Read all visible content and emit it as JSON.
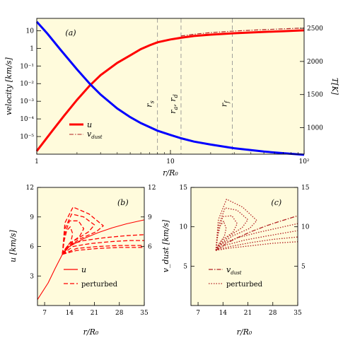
{
  "chart_data": [
    {
      "id": "a",
      "type": "line",
      "panel_label": "(a)",
      "xlabel": "r/R₀",
      "ylabel": "velocity [km/s]",
      "ylabel_right": "T[K]",
      "x_scale": "log",
      "y_scale": "log",
      "xlim": [
        1,
        100
      ],
      "ylim": [
        1e-06,
        50
      ],
      "y2lim": [
        600,
        2650
      ],
      "x_ticks": [
        1,
        10,
        100
      ],
      "x_tick_labels": [
        "1",
        "10",
        "10²"
      ],
      "y_ticks": [
        10,
        1,
        0.1,
        0.01,
        0.001,
        0.0001,
        1e-05
      ],
      "y_tick_labels": [
        "10",
        "1",
        "10⁻¹",
        "10⁻²",
        "10⁻³",
        "10⁻⁴",
        "10⁻⁵"
      ],
      "y2_ticks": [
        1000,
        1500,
        2000,
        2500
      ],
      "y2_tick_labels": [
        "1000",
        "1500",
        "2000",
        "2500"
      ],
      "vlines": [
        {
          "x": 8,
          "label": "r_s"
        },
        {
          "x": 12,
          "label": "r_a, r_d"
        },
        {
          "x": 29,
          "label": "r_f"
        }
      ],
      "vline_labels": [
        "r",
        "s",
        "r",
        "a",
        ", r",
        "d",
        "r",
        "f"
      ],
      "legend": [
        {
          "label": "u",
          "style": "solid",
          "color": "#ff0000"
        },
        {
          "label": "v",
          "sub": "dust",
          "style": "dashdot",
          "color": "#b22222"
        }
      ],
      "series": [
        {
          "name": "u",
          "axis": "left",
          "color": "#ff0000",
          "style": "solid",
          "x": [
            1,
            1.3,
            1.6,
            2,
            2.5,
            3,
            4,
            5,
            6,
            7,
            8,
            10,
            12,
            15,
            20,
            30,
            50,
            70,
            100
          ],
          "y": [
            1.5e-06,
            2e-05,
            0.00015,
            0.0012,
            0.008,
            0.03,
            0.15,
            0.4,
            0.9,
            1.5,
            2.2,
            3.2,
            4.0,
            5.0,
            6.0,
            7.2,
            8.6,
            9.4,
            10.5
          ]
        },
        {
          "name": "v_dust",
          "axis": "left",
          "color": "#b22222",
          "style": "dashdot",
          "x": [
            12,
            15,
            20,
            30,
            50,
            70,
            100
          ],
          "y": [
            5.0,
            6.3,
            7.8,
            9.6,
            11.5,
            12.7,
            14.2
          ]
        },
        {
          "name": "T",
          "axis": "right",
          "color": "#0000ff",
          "style": "solid",
          "x": [
            1,
            1.2,
            1.5,
            2,
            2.5,
            3,
            4,
            5,
            6,
            8,
            10,
            12,
            15,
            20,
            30,
            50,
            70,
            100
          ],
          "y": [
            2600,
            2420,
            2180,
            1880,
            1660,
            1500,
            1290,
            1160,
            1070,
            955,
            890,
            840,
            790,
            745,
            690,
            640,
            615,
            590
          ]
        }
      ]
    },
    {
      "id": "b",
      "type": "line",
      "panel_label": "(b)",
      "xlabel": "r/R₀",
      "ylabel": "u [km/s]",
      "xlim": [
        5,
        35
      ],
      "ylim": [
        0,
        12
      ],
      "x_ticks": [
        7,
        14,
        21,
        28,
        35
      ],
      "y_ticks": [
        3,
        6,
        9,
        12
      ],
      "y2_ticks": [
        6,
        9,
        12
      ],
      "legend": [
        {
          "label": "u",
          "style": "solid"
        },
        {
          "label": "perturbed",
          "style": "dashed"
        }
      ],
      "series": [
        {
          "name": "u",
          "color": "#ff0000",
          "style": "solid",
          "x": [
            5,
            8,
            10,
            12,
            14,
            18,
            22,
            26,
            30,
            35
          ],
          "y": [
            0.6,
            2.3,
            3.8,
            5.2,
            6.0,
            6.8,
            7.4,
            7.9,
            8.3,
            8.7
          ]
        },
        {
          "name": "",
          "color": "#ff0000",
          "style": "dashed",
          "x": [
            12,
            14,
            18,
            24,
            30,
            35
          ],
          "y": [
            5.2,
            6.2,
            6.6,
            6.9,
            7.1,
            7.2
          ]
        },
        {
          "name": "",
          "color": "#ff0000",
          "style": "dashed",
          "x": [
            12,
            15,
            20,
            26,
            31,
            35
          ],
          "y": [
            5.2,
            6.0,
            6.3,
            6.5,
            6.6,
            6.6
          ]
        },
        {
          "name": "",
          "color": "#ff0000",
          "style": "dashed",
          "x": [
            12,
            16,
            22,
            28,
            35
          ],
          "y": [
            5.2,
            5.8,
            6.0,
            6.1,
            6.1
          ]
        },
        {
          "name": "",
          "color": "#ff0000",
          "style": "dashed",
          "x": [
            12,
            16,
            22,
            28,
            35
          ],
          "y": [
            5.2,
            5.6,
            5.8,
            5.9,
            5.9
          ]
        },
        {
          "name": "",
          "color": "#ff0000",
          "style": "dashed",
          "x": [
            12,
            12.5,
            13.2,
            14.2,
            14.9,
            14.4,
            13.1,
            12.3,
            12
          ],
          "y": [
            5.2,
            6.6,
            7.6,
            8.0,
            7.3,
            6.5,
            5.9,
            5.5,
            5.2
          ]
        },
        {
          "name": "",
          "color": "#ff0000",
          "style": "dashed",
          "x": [
            12,
            12.6,
            14,
            16.5,
            18,
            16.8,
            14,
            12.5,
            12
          ],
          "y": [
            5.2,
            7.2,
            8.6,
            8.6,
            7.8,
            7.0,
            6.3,
            5.6,
            5.2
          ]
        },
        {
          "name": "",
          "color": "#ff0000",
          "style": "dashed",
          "x": [
            12,
            12.7,
            14.6,
            18,
            21,
            19.4,
            15.4,
            12.8,
            12
          ],
          "y": [
            5.2,
            7.8,
            9.3,
            9.0,
            8.2,
            7.5,
            6.6,
            5.7,
            5.2
          ]
        },
        {
          "name": "",
          "color": "#ff0000",
          "style": "dashed",
          "x": [
            12,
            12.7,
            15,
            19.5,
            23.5,
            21.5,
            16.5,
            13,
            12
          ],
          "y": [
            5.2,
            8.4,
            10.0,
            9.3,
            8.1,
            7.5,
            6.7,
            5.7,
            5.2
          ]
        }
      ]
    },
    {
      "id": "c",
      "type": "line",
      "panel_label": "(c)",
      "xlabel": "r/R₀",
      "ylabel": "v_dust [km/s]",
      "xlim": [
        5,
        35
      ],
      "ylim": [
        0,
        15
      ],
      "x_ticks": [
        7,
        14,
        21,
        28,
        35
      ],
      "y_ticks": [
        5,
        10,
        15
      ],
      "y2_ticks": [
        5,
        10,
        15
      ],
      "legend": [
        {
          "label": "v",
          "sub": "dust",
          "style": "dashdot"
        },
        {
          "label": "perturbed",
          "style": "dotted"
        }
      ],
      "series": [
        {
          "name": "v_dust",
          "color": "#b22222",
          "style": "dashdot",
          "x": [
            12,
            15,
            18,
            22,
            26,
            30,
            35
          ],
          "y": [
            7.0,
            7.9,
            8.6,
            9.4,
            10.1,
            10.7,
            11.4
          ]
        },
        {
          "name": "",
          "color": "#b22222",
          "style": "dotted",
          "x": [
            12,
            14,
            18,
            24,
            30,
            35
          ],
          "y": [
            7.0,
            7.9,
            8.6,
            9.3,
            9.9,
            10.4
          ]
        },
        {
          "name": "",
          "color": "#b22222",
          "style": "dotted",
          "x": [
            12,
            15,
            20,
            26,
            31,
            35
          ],
          "y": [
            7.0,
            7.7,
            8.3,
            8.8,
            9.2,
            9.5
          ]
        },
        {
          "name": "",
          "color": "#b22222",
          "style": "dotted",
          "x": [
            12,
            16,
            22,
            28,
            35
          ],
          "y": [
            7.0,
            7.5,
            8.0,
            8.4,
            8.7
          ]
        },
        {
          "name": "",
          "color": "#b22222",
          "style": "dotted",
          "x": [
            12,
            16,
            22,
            28,
            35
          ],
          "y": [
            7.0,
            7.3,
            7.6,
            7.9,
            8.1
          ]
        },
        {
          "name": "",
          "color": "#b22222",
          "style": "dotted",
          "x": [
            12,
            12.5,
            13.2,
            14.2,
            14.9,
            14.4,
            13.1,
            12.3,
            12
          ],
          "y": [
            7.0,
            8.8,
            10.1,
            10.7,
            9.8,
            8.8,
            8.0,
            7.4,
            7.0
          ]
        },
        {
          "name": "",
          "color": "#b22222",
          "style": "dotted",
          "x": [
            12,
            12.6,
            14,
            16.5,
            18,
            16.8,
            14,
            12.5,
            12
          ],
          "y": [
            7.0,
            9.4,
            11.3,
            11.4,
            10.4,
            9.3,
            8.4,
            7.5,
            7.0
          ]
        },
        {
          "name": "",
          "color": "#b22222",
          "style": "dotted",
          "x": [
            12,
            12.7,
            14.6,
            18,
            21,
            19.4,
            15.4,
            12.8,
            12
          ],
          "y": [
            7.0,
            10.1,
            12.4,
            12.1,
            10.9,
            9.9,
            8.7,
            7.6,
            7.0
          ]
        },
        {
          "name": "",
          "color": "#b22222",
          "style": "dotted",
          "x": [
            12,
            12.7,
            15,
            19.5,
            23.5,
            21.5,
            16.5,
            13,
            12
          ],
          "y": [
            7.0,
            10.9,
            13.5,
            12.5,
            10.8,
            9.8,
            8.8,
            7.6,
            7.0
          ]
        }
      ]
    }
  ]
}
